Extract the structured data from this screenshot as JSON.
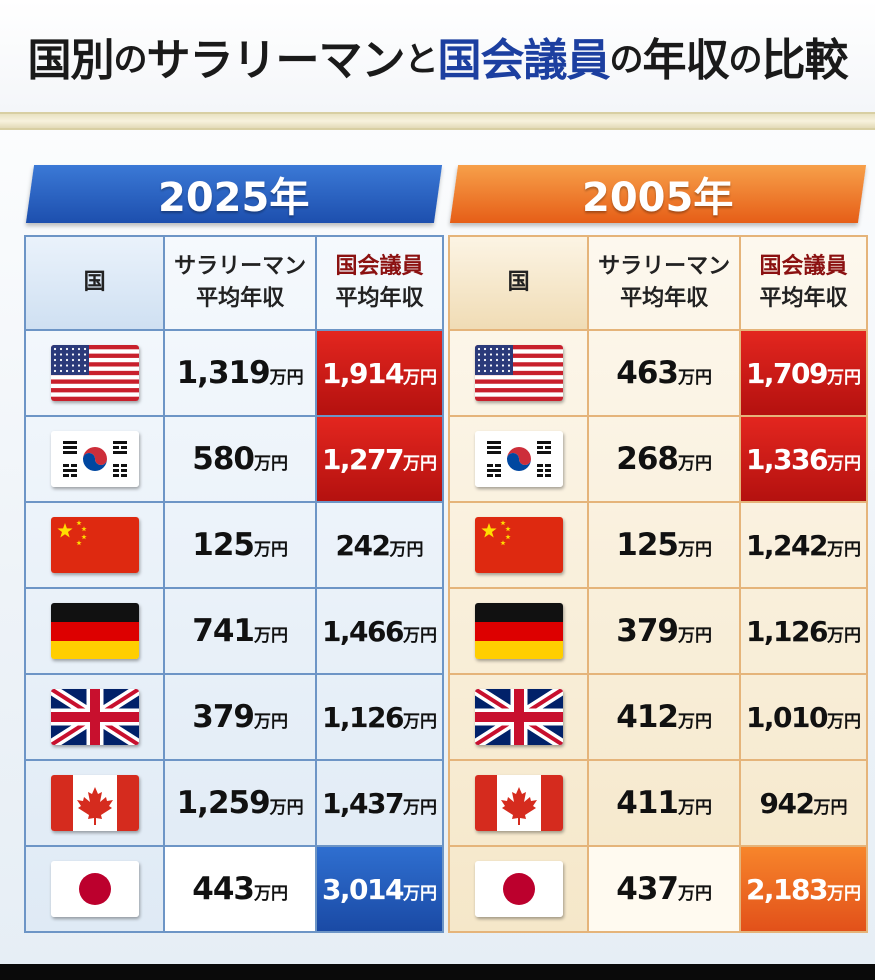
{
  "title": {
    "part1": "国別",
    "no1": "の",
    "part2": "サラリーマン",
    "to": "と",
    "part3": "国会議員",
    "no2": "の",
    "part4": "年収",
    "no3": "の",
    "part5": "比較"
  },
  "headers": {
    "country": "国",
    "salary_line1": "サラリーマン",
    "salary_line2": "平均年収",
    "politician_line1": "国会議員",
    "politician_line2": "平均年収"
  },
  "unit": "万円",
  "panels": [
    {
      "year": "2025年",
      "rows": [
        {
          "flag": "usa-flag-icon",
          "salary": "1,319",
          "politician": "1,914",
          "highlight": "red"
        },
        {
          "flag": "korea-flag-icon",
          "salary": "580",
          "politician": "1,277",
          "highlight": "red"
        },
        {
          "flag": "china-flag-icon",
          "salary": "125",
          "politician": "242",
          "highlight": "none"
        },
        {
          "flag": "germany-flag-icon",
          "salary": "741",
          "politician": "1,466",
          "highlight": "none"
        },
        {
          "flag": "uk-flag-icon",
          "salary": "379",
          "politician": "1,126",
          "highlight": "none"
        },
        {
          "flag": "canada-flag-icon",
          "salary": "1,259",
          "politician": "1,437",
          "highlight": "none"
        },
        {
          "flag": "japan-flag-icon",
          "salary": "443",
          "politician": "3,014",
          "highlight": "blue"
        }
      ]
    },
    {
      "year": "2005年",
      "rows": [
        {
          "flag": "usa-flag-icon",
          "salary": "463",
          "politician": "1,709",
          "highlight": "red"
        },
        {
          "flag": "korea-flag-icon",
          "salary": "268",
          "politician": "1,336",
          "highlight": "red"
        },
        {
          "flag": "china-flag-icon",
          "salary": "125",
          "politician": "1,242",
          "highlight": "none"
        },
        {
          "flag": "germany-flag-icon",
          "salary": "379",
          "politician": "1,126",
          "highlight": "none"
        },
        {
          "flag": "uk-flag-icon",
          "salary": "412",
          "politician": "1,010",
          "highlight": "none"
        },
        {
          "flag": "canada-flag-icon",
          "salary": "411",
          "politician": "942",
          "highlight": "none"
        },
        {
          "flag": "japan-flag-icon",
          "salary": "437",
          "politician": "2,183",
          "highlight": "orange"
        }
      ]
    }
  ],
  "colors": {
    "banner_2025": "#1d4fae",
    "banner_2005": "#e65e17",
    "highlight_red": "#c41a16",
    "highlight_blue": "#1a4aa5",
    "highlight_orange": "#e2511a",
    "title_accent": "#1c3fa0"
  }
}
